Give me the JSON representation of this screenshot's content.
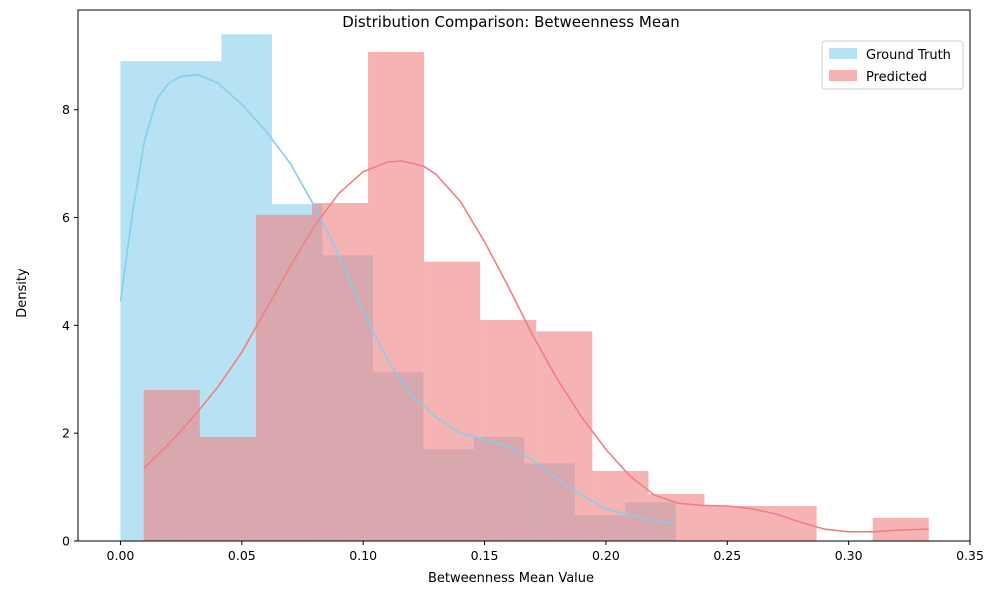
{
  "chart_data": {
    "type": "histogram",
    "title": "Distribution Comparison: Betweenness Mean",
    "xlabel": "Betweenness Mean Value",
    "ylabel": "Density",
    "xlim": [
      -0.0175,
      0.35
    ],
    "ylim": [
      0,
      9.85
    ],
    "xticks": [
      0.0,
      0.05,
      0.1,
      0.15,
      0.2,
      0.25,
      0.3,
      0.35
    ],
    "xtick_labels": [
      "0.00",
      "0.05",
      "0.10",
      "0.15",
      "0.20",
      "0.25",
      "0.30",
      "0.35"
    ],
    "yticks": [
      0,
      2,
      4,
      6,
      8
    ],
    "ytick_labels": [
      "0",
      "2",
      "4",
      "6",
      "8"
    ],
    "grid": false,
    "legend_position": "top-right",
    "series": [
      {
        "name": "Ground Truth",
        "color": "#87ceeb",
        "bin_edges": [
          0.0,
          0.0208,
          0.0416,
          0.0624,
          0.0832,
          0.104,
          0.1248,
          0.1456,
          0.1664,
          0.1872,
          0.208,
          0.2288
        ],
        "densities": [
          8.9,
          8.9,
          9.4,
          6.25,
          5.3,
          3.13,
          1.7,
          1.93,
          1.44,
          0.48,
          0.72
        ],
        "kde": [
          [
            0.0,
            4.45
          ],
          [
            0.005,
            6.1
          ],
          [
            0.01,
            7.45
          ],
          [
            0.015,
            8.2
          ],
          [
            0.02,
            8.5
          ],
          [
            0.025,
            8.62
          ],
          [
            0.032,
            8.65
          ],
          [
            0.04,
            8.5
          ],
          [
            0.05,
            8.1
          ],
          [
            0.06,
            7.6
          ],
          [
            0.07,
            7.0
          ],
          [
            0.08,
            6.2
          ],
          [
            0.09,
            5.3
          ],
          [
            0.1,
            4.25
          ],
          [
            0.11,
            3.35
          ],
          [
            0.12,
            2.7
          ],
          [
            0.13,
            2.3
          ],
          [
            0.14,
            2.0
          ],
          [
            0.15,
            1.88
          ],
          [
            0.16,
            1.75
          ],
          [
            0.17,
            1.5
          ],
          [
            0.18,
            1.15
          ],
          [
            0.19,
            0.85
          ],
          [
            0.2,
            0.6
          ],
          [
            0.21,
            0.48
          ],
          [
            0.22,
            0.38
          ],
          [
            0.228,
            0.32
          ]
        ]
      },
      {
        "name": "Predicted",
        "color": "#f08080",
        "bin_edges": [
          0.0096,
          0.0327,
          0.0558,
          0.0789,
          0.102,
          0.1251,
          0.1482,
          0.1713,
          0.1944,
          0.2175,
          0.2406,
          0.2637,
          0.2868,
          0.3099,
          0.333
        ],
        "densities": [
          2.8,
          1.93,
          6.05,
          6.27,
          9.07,
          5.18,
          4.1,
          3.89,
          1.3,
          0.87,
          0.65,
          0.65,
          0.0,
          0.43
        ],
        "kde": [
          [
            0.0096,
            1.35
          ],
          [
            0.02,
            1.8
          ],
          [
            0.03,
            2.3
          ],
          [
            0.04,
            2.85
          ],
          [
            0.05,
            3.5
          ],
          [
            0.06,
            4.3
          ],
          [
            0.07,
            5.1
          ],
          [
            0.08,
            5.85
          ],
          [
            0.09,
            6.45
          ],
          [
            0.1,
            6.85
          ],
          [
            0.11,
            7.03
          ],
          [
            0.116,
            7.05
          ],
          [
            0.125,
            6.95
          ],
          [
            0.13,
            6.8
          ],
          [
            0.14,
            6.3
          ],
          [
            0.15,
            5.55
          ],
          [
            0.16,
            4.7
          ],
          [
            0.17,
            3.8
          ],
          [
            0.18,
            3.0
          ],
          [
            0.19,
            2.3
          ],
          [
            0.2,
            1.7
          ],
          [
            0.21,
            1.2
          ],
          [
            0.22,
            0.85
          ],
          [
            0.23,
            0.7
          ],
          [
            0.24,
            0.66
          ],
          [
            0.25,
            0.65
          ],
          [
            0.26,
            0.6
          ],
          [
            0.27,
            0.5
          ],
          [
            0.28,
            0.35
          ],
          [
            0.29,
            0.22
          ],
          [
            0.3,
            0.17
          ],
          [
            0.31,
            0.17
          ],
          [
            0.32,
            0.2
          ],
          [
            0.333,
            0.22
          ]
        ]
      }
    ]
  }
}
